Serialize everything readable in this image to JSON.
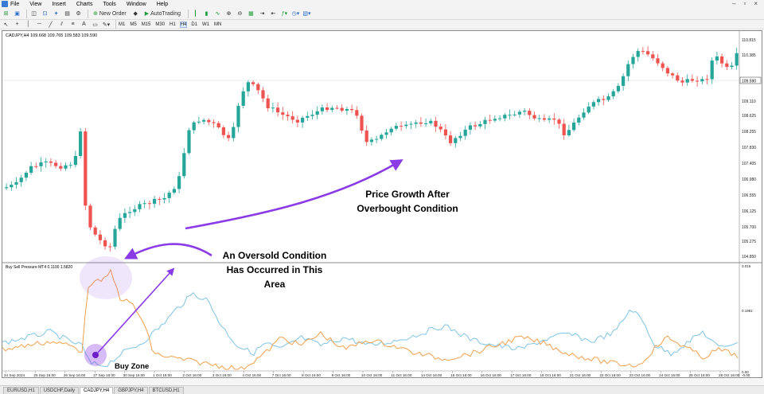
{
  "menu": {
    "items": [
      "File",
      "View",
      "Insert",
      "Charts",
      "Tools",
      "Window",
      "Help"
    ]
  },
  "toolbar": {
    "new_order_label": "New Order",
    "autotrading_label": "AutoTrading",
    "timeframes": [
      "M1",
      "M5",
      "M15",
      "M30",
      "H1",
      "H4",
      "D1",
      "W1",
      "MN"
    ],
    "active_timeframe": "H4"
  },
  "chart": {
    "info": "CADJPY,H4  109.668 109.765 109.583 109.590",
    "indicator_info": "Buy Sell Pressure MT4 0.1100 1.5820",
    "current_price": "109.590",
    "price_labels": [
      "110.815",
      "110.385",
      "109.590",
      "109.110",
      "108.625",
      "108.255",
      "107.830",
      "107.405",
      "106.980",
      "106.555",
      "106.125",
      "105.700",
      "105.275",
      "104.850"
    ],
    "indicator_labels": [
      "3.015",
      "0.1981",
      "0.00",
      "-0.00"
    ],
    "time_labels": [
      "24 Sep 2024",
      "25 Sep 16:00",
      "26 Sep 16:00",
      "27 Sep 16:00",
      "30 Sep 16:00",
      "1 Oct 16:00",
      "2 Oct 16:00",
      "3 Oct 16:00",
      "4 Oct 16:00",
      "7 Oct 16:00",
      "8 Oct 16:00",
      "9 Oct 16:00",
      "10 Oct 16:00",
      "11 Oct 16:00",
      "14 Oct 16:00",
      "15 Oct 16:00",
      "16 Oct 16:00",
      "17 Oct 16:00",
      "18 Oct 16:00",
      "21 Oct 16:00",
      "22 Oct 16:00",
      "23 Oct 16:00",
      "24 Oct 16:00",
      "25 Oct 16:00",
      "28 Oct 16:00"
    ],
    "candle_up_color": "#26a69a",
    "candle_down_color": "#ef5350",
    "buy_line_color": "#f0a04b",
    "sell_line_color": "#7fc4e6",
    "arrow_color": "#8a3be6",
    "annotations": {
      "growth_line1": "Price Growth After",
      "growth_line2": "Overbought Condition",
      "oversold_line1": "An Oversold Condition",
      "oversold_line2": "Has Occurred in This",
      "oversold_line3": "Area",
      "buy_zone": "Buy Zone"
    }
  },
  "tabs": {
    "items": [
      "EURUSD,H1",
      "USDCHF,Daily",
      "CADJPY,H4",
      "GBPJPY,H4",
      "BTCUSD,H1"
    ],
    "active": "CADJPY,H4"
  }
}
